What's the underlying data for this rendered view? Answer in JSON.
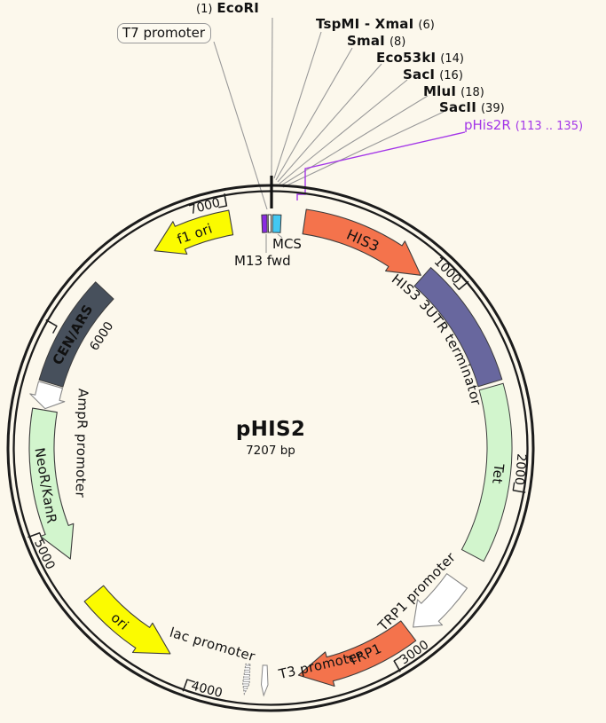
{
  "title": {
    "name": "pHIS2",
    "size": "7207 bp"
  },
  "t7_box_label": "T7 promoter",
  "mcs_label": "MCS",
  "m13_label": "M13 fwd",
  "primer_color": "#a335e8",
  "leader_color": "#999999",
  "ring_color": "#1c1c1c",
  "sites": [
    {
      "pre": "(1)",
      "name": "EcoRI",
      "post": ""
    },
    {
      "pre": "",
      "name": "TspMI - XmaI",
      "post": "(6)"
    },
    {
      "pre": "",
      "name": "SmaI",
      "post": "(8)"
    },
    {
      "pre": "",
      "name": "Eco53kI",
      "post": "(14)"
    },
    {
      "pre": "",
      "name": "SacI",
      "post": "(16)"
    },
    {
      "pre": "",
      "name": "MluI",
      "post": "(18)"
    },
    {
      "pre": "",
      "name": "SacII",
      "post": "(39)"
    },
    {
      "pre": "",
      "name": "pHis2R",
      "post": "(113 .. 135)",
      "primer": true
    }
  ],
  "plasmid": {
    "length_bp": 7207,
    "ticks": [
      {
        "label": "1000",
        "angle": 49.9
      },
      {
        "label": "2000",
        "angle": 99.9
      },
      {
        "label": "3000",
        "angle": 149.9
      },
      {
        "label": "4000",
        "angle": 199.8
      },
      {
        "label": "5000",
        "angle": 249.8
      },
      {
        "label": "6000",
        "angle": 299.7,
        "labelR": 228,
        "labelOffset": 3.8
      },
      {
        "label": "7000",
        "angle": 349.7
      }
    ],
    "features": [
      {
        "id": "f1-ori",
        "label": "f1 ori",
        "type": "arrow",
        "start": 329.5,
        "end": 350,
        "head": "ccw",
        "fill": "#fbfb00",
        "labelAngle": 340.5,
        "labelR": 256,
        "fontSize": 15
      },
      {
        "id": "m13-fwd",
        "label": "",
        "type": "block",
        "start": 357.8,
        "end": 359.1,
        "fill": "#8a2be2",
        "ro": 263,
        "ri": 243
      },
      {
        "id": "t7-promoter-site",
        "label": "",
        "type": "block",
        "start": 359.4,
        "end": 360.1,
        "fill": "#ffffff",
        "ro": 263,
        "ri": 243
      },
      {
        "id": "mcs",
        "label": "",
        "type": "block",
        "start": 0.5,
        "end": 2.6,
        "fill": "#42c8f2",
        "ro": 263,
        "ri": 243
      },
      {
        "id": "his3",
        "label": "HIS3",
        "type": "arrow",
        "start": 8.5,
        "end": 41,
        "head": "cw",
        "fill": "#f4734c",
        "labelAngle": 24,
        "labelR": 256,
        "fontSize": 16
      },
      {
        "id": "his3-3utr-terminator",
        "label": "HIS3 3UTR terminator",
        "type": "block",
        "start": 41.6,
        "end": 73.5,
        "fill": "#68679e",
        "labelAngle": 57,
        "labelR": 232,
        "fontSize": 15,
        "curvedLabel": true
      },
      {
        "id": "tet",
        "label": "Tet",
        "type": "block",
        "start": 74.5,
        "end": 118,
        "fill": "#d2f5cd",
        "labelAngle": 96.5,
        "labelR": 258,
        "fontSize": 15
      },
      {
        "id": "trp1-promoter",
        "label": "TRP1 promoter",
        "type": "arrow",
        "start": 125.5,
        "end": 141.5,
        "head": "cw",
        "fill": "#ffffff",
        "stroke": "#888888",
        "labelAngle": 134.5,
        "labelR": 231,
        "fontSize": 15
      },
      {
        "id": "trp1",
        "label": "TRP1",
        "type": "arrow",
        "start": 143,
        "end": 173,
        "head": "cw",
        "fill": "#f4734c",
        "labelAngle": 155.5,
        "labelR": 256,
        "fontSize": 15
      },
      {
        "id": "t3-promoter",
        "label": "T3 promoter",
        "type": "tiny",
        "angle": 181.5,
        "labelAngle": 167,
        "labelR": 251,
        "fontSize": 15
      },
      {
        "id": "lac-promoter",
        "label": "lac promoter",
        "type": "tiny",
        "dashed": true,
        "angle": 186,
        "labelAngle": 196.5,
        "labelR": 231,
        "fontSize": 15
      },
      {
        "id": "ori",
        "label": "ori",
        "type": "arrow",
        "start": 206,
        "end": 230.5,
        "head": "ccw",
        "fill": "#fbfb00",
        "labelAngle": 221,
        "labelR": 259,
        "fontSize": 15
      },
      {
        "id": "neor-kanr",
        "label": "NeoR/KanR",
        "type": "arrow",
        "start": 241,
        "end": 279.5,
        "head": "ccw",
        "fill": "#d2f5cd",
        "labelAngle": 260.5,
        "labelR": 257,
        "fontSize": 15
      },
      {
        "id": "ampr-promoter",
        "label": "AmpR promoter",
        "type": "arrow",
        "start": 279.9,
        "end": 286,
        "head": "ccw",
        "fill": "#ffffff",
        "stroke": "#888888",
        "labelAngle": 271.5,
        "labelR": 213,
        "fontSize": 15
      },
      {
        "id": "cen-ars",
        "label": "CEN/ARS",
        "type": "block",
        "start": 286.4,
        "end": 313.5,
        "fill": "#47505c",
        "labelColor": "#ffffff",
        "bold": true,
        "labelAngle": 299.8,
        "labelR": 257,
        "fontSize": 15
      }
    ]
  }
}
